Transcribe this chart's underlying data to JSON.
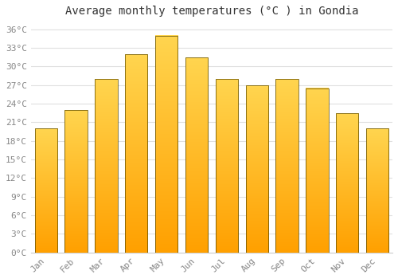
{
  "title": "Average monthly temperatures (°C ) in Gondia",
  "months": [
    "Jan",
    "Feb",
    "Mar",
    "Apr",
    "May",
    "Jun",
    "Jul",
    "Aug",
    "Sep",
    "Oct",
    "Nov",
    "Dec"
  ],
  "values": [
    20.0,
    23.0,
    28.0,
    32.0,
    35.0,
    31.5,
    28.0,
    27.0,
    28.0,
    26.5,
    22.5,
    20.0
  ],
  "bar_color_bottom": "#FFA000",
  "bar_color_top": "#FFD54F",
  "bar_edge_color": "#5a4a00",
  "ylim": [
    0,
    37
  ],
  "yticks": [
    0,
    3,
    6,
    9,
    12,
    15,
    18,
    21,
    24,
    27,
    30,
    33,
    36
  ],
  "ytick_labels": [
    "0°C",
    "3°C",
    "6°C",
    "9°C",
    "12°C",
    "15°C",
    "18°C",
    "21°C",
    "24°C",
    "27°C",
    "30°C",
    "33°C",
    "36°C"
  ],
  "background_color": "#ffffff",
  "grid_color": "#e0e0e0",
  "title_fontsize": 10,
  "tick_fontsize": 8,
  "bar_width": 0.75
}
